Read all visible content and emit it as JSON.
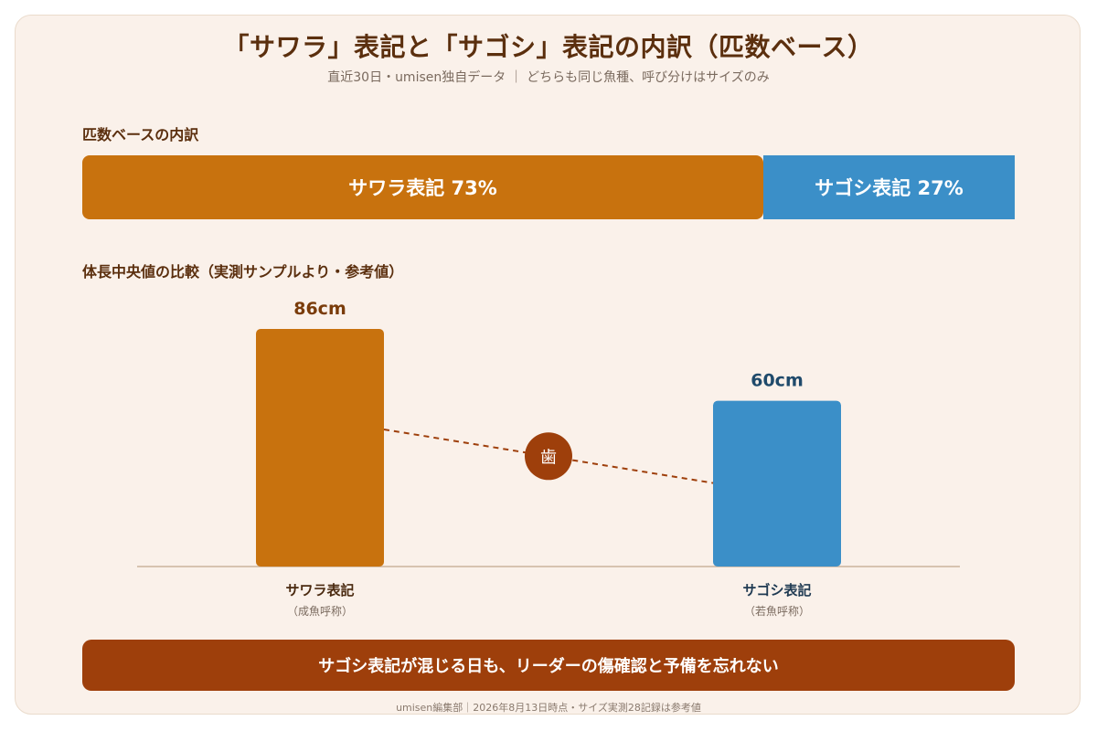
{
  "colors": {
    "sawara": "#c8720e",
    "sagoshi": "#3b8fc8",
    "accent_dark": "#9e3f0b",
    "title": "#5b2f0e",
    "value_a": "#7a3c0a",
    "value_b": "#1f4a6b"
  },
  "header": {
    "title": "「サワラ」表記と「サゴシ」表記の内訳（匹数ベース）",
    "subtitle": "直近30日・umisen独自データ ｜ どちらも同じ魚種、呼び分けはサイズのみ"
  },
  "breakdown": {
    "label": "匹数ベースの内訳",
    "segments": [
      {
        "label": "サワラ表記 73%",
        "share": 73
      },
      {
        "label": "サゴシ表記 27%",
        "share": 27
      }
    ]
  },
  "comparison": {
    "label": "体長中央値の比較（実測サンプルより・参考値）",
    "marker_glyph": "歯"
  },
  "chart_data": {
    "type": "bar",
    "categories": [
      "サワラ表記",
      "サゴシ表記"
    ],
    "sublabels": [
      "（成魚呼称）",
      "（若魚呼称）"
    ],
    "values": [
      86,
      60
    ],
    "value_labels": [
      "86cm",
      "60cm"
    ],
    "unit": "cm",
    "ylim": [
      0,
      100
    ],
    "grid": false,
    "connector": "dashed line between bar tops"
  },
  "banner": {
    "text": "サゴシ表記が混じる日も、リーダーの傷確認と予備を忘れない"
  },
  "footer": {
    "text": "umisen編集部｜2026年8月13日時点・サイズ実測28記録は参考値"
  }
}
